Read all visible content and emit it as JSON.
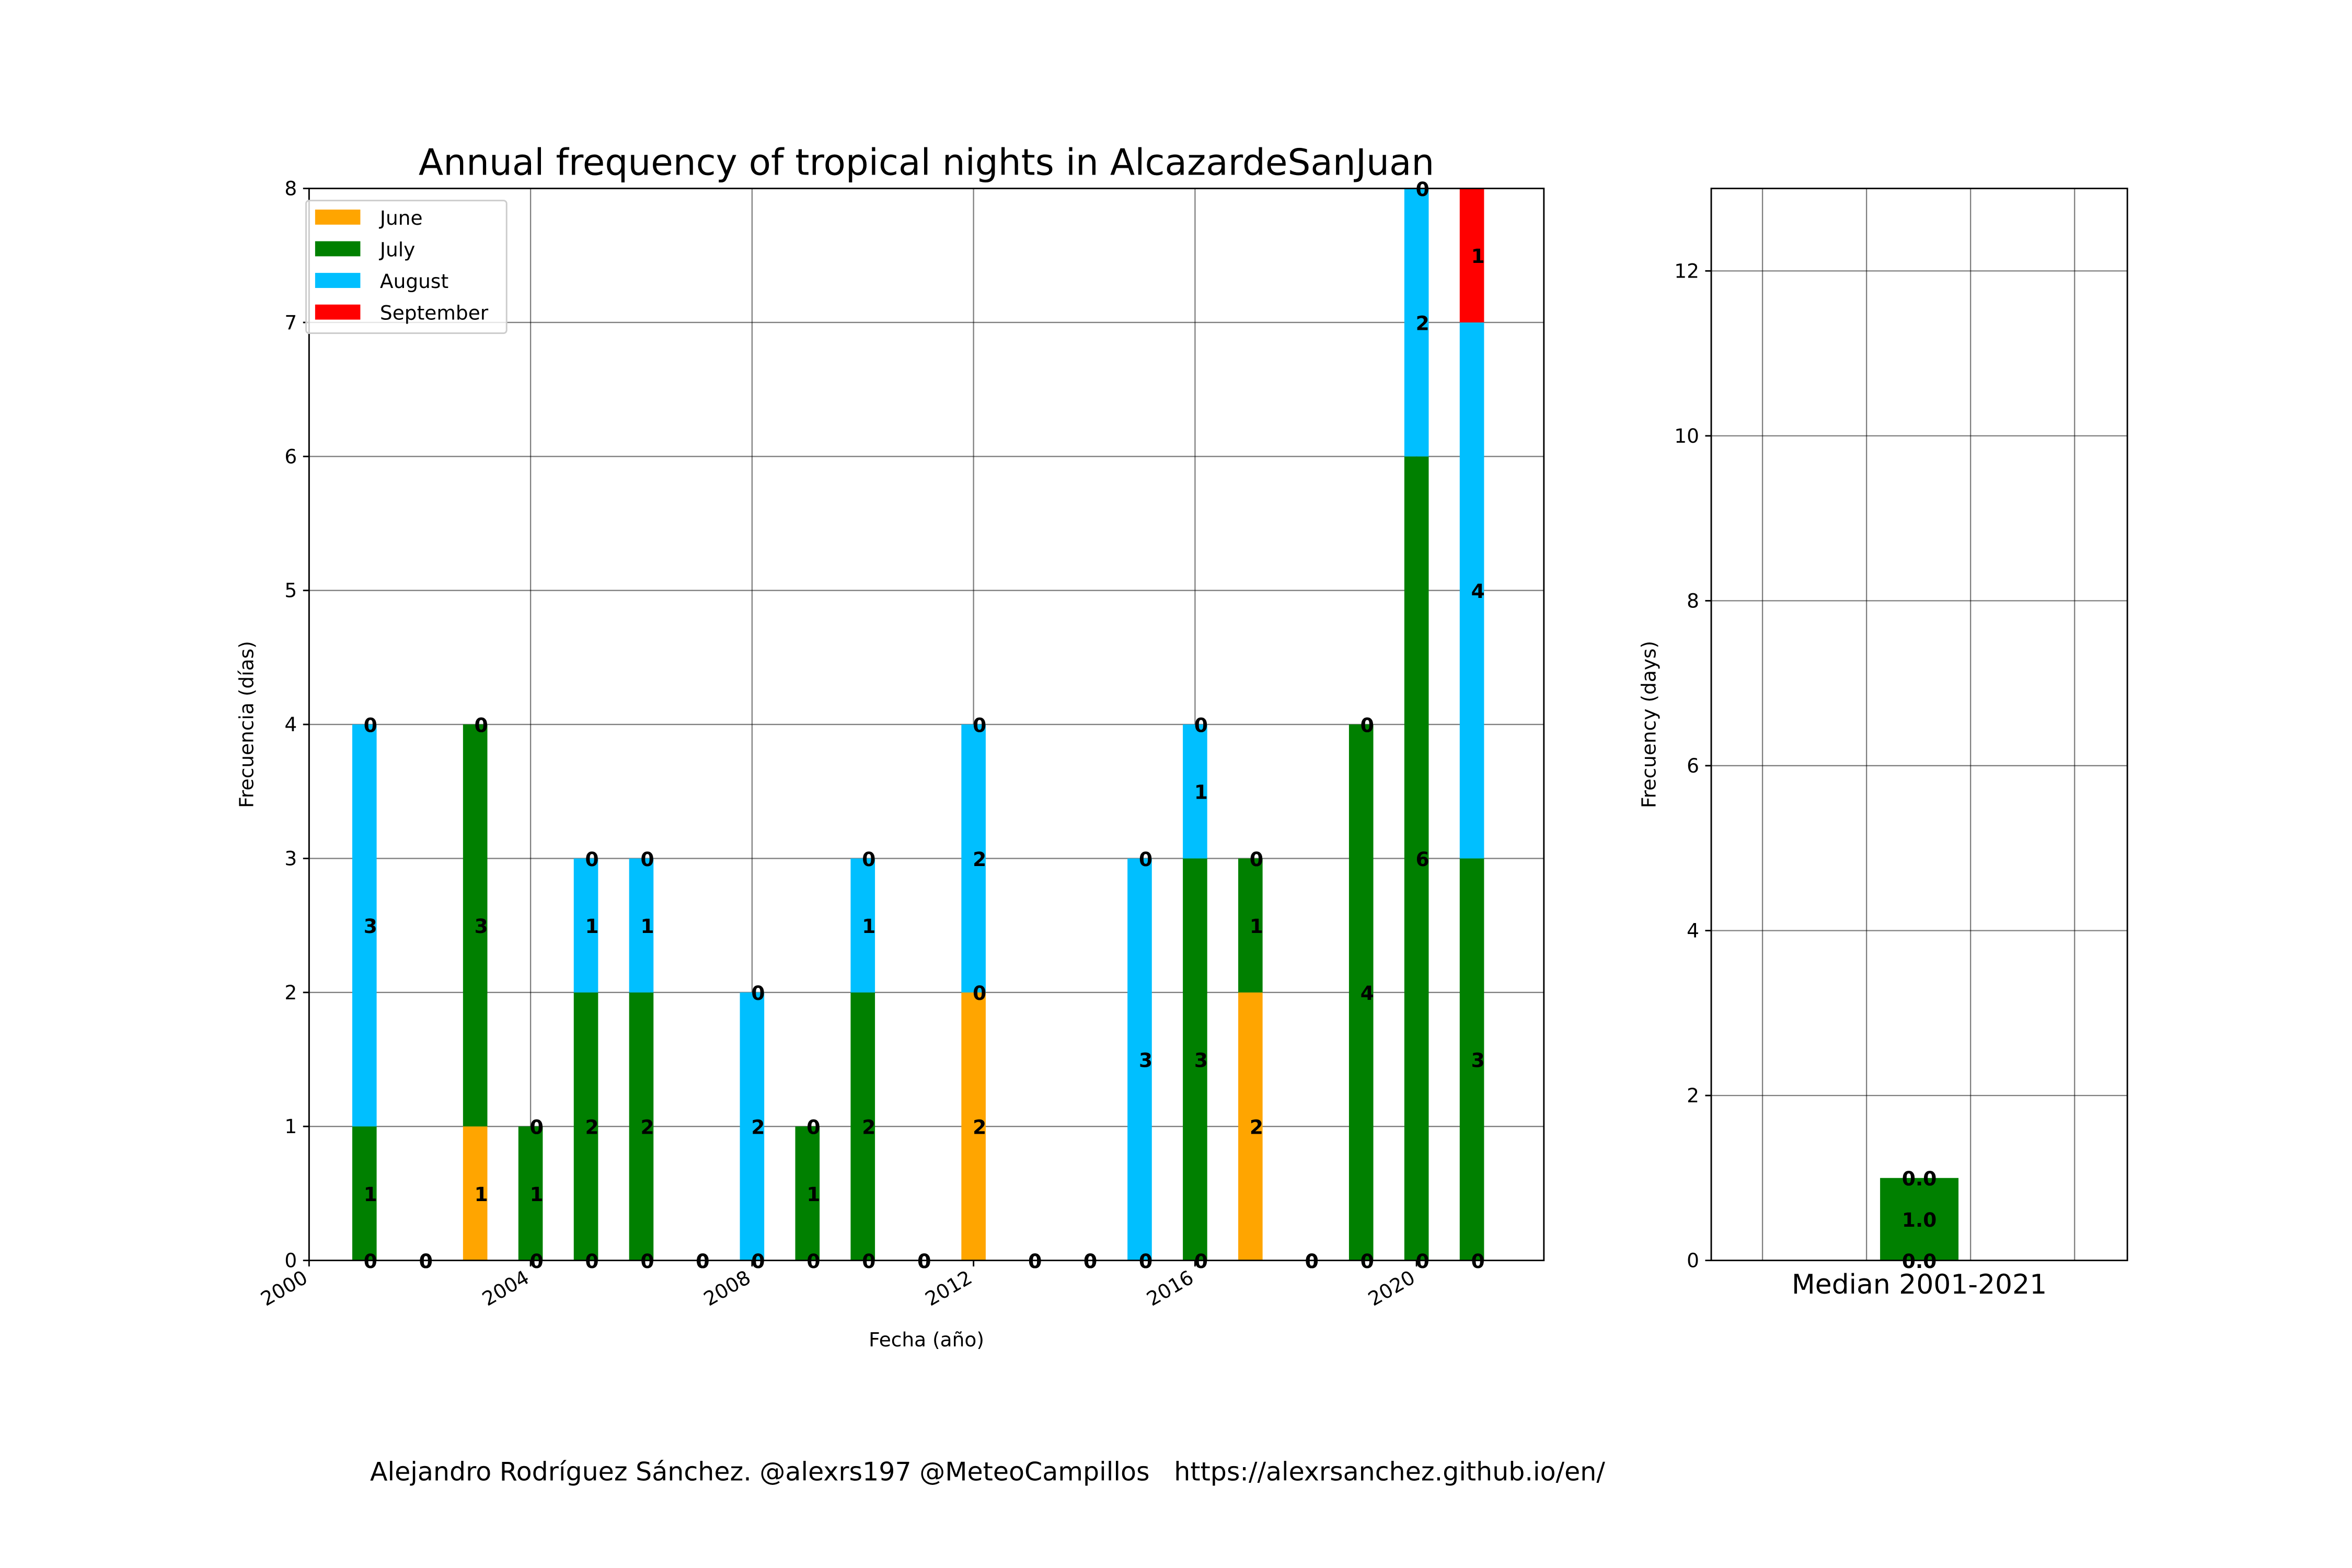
{
  "chart_data": [
    {
      "type": "bar",
      "stacked": true,
      "title": "Annual frequency of tropical nights in AlcazardeSanJuan",
      "x_label": "Fecha (año)",
      "y_label": "Frecuencia (días)",
      "x": [
        2001,
        2002,
        2003,
        2004,
        2005,
        2006,
        2007,
        2008,
        2009,
        2010,
        2011,
        2012,
        2013,
        2014,
        2015,
        2016,
        2017,
        2018,
        2019,
        2020,
        2021
      ],
      "series": [
        {
          "name": "June",
          "color": "#ffa500",
          "values": [
            0,
            0,
            1,
            0,
            0,
            0,
            0,
            0,
            0,
            0,
            0,
            2,
            0,
            0,
            0,
            0,
            2,
            0,
            0,
            0,
            0
          ]
        },
        {
          "name": "July",
          "color": "#008000",
          "values": [
            1,
            0,
            3,
            1,
            2,
            2,
            0,
            0,
            1,
            2,
            0,
            0,
            0,
            0,
            0,
            3,
            1,
            0,
            4,
            6,
            3
          ]
        },
        {
          "name": "August",
          "color": "#00bfff",
          "values": [
            3,
            0,
            0,
            0,
            1,
            1,
            0,
            2,
            0,
            1,
            0,
            2,
            0,
            0,
            3,
            1,
            0,
            0,
            0,
            2,
            4
          ]
        },
        {
          "name": "September",
          "color": "#ff0000",
          "values": [
            0,
            0,
            0,
            0,
            0,
            0,
            0,
            0,
            0,
            0,
            0,
            0,
            0,
            0,
            0,
            0,
            0,
            0,
            0,
            0,
            1
          ]
        }
      ],
      "xlim": [
        2000,
        2022.3
      ],
      "xticks": [
        2000,
        2004,
        2008,
        2012,
        2016,
        2020
      ],
      "ylim": [
        0,
        8
      ],
      "yticks": [
        0,
        1,
        2,
        3,
        4,
        5,
        6,
        7,
        8
      ],
      "grid": true,
      "legend": "upper left"
    },
    {
      "type": "bar",
      "stacked": true,
      "y_label": "Frecuency (days)",
      "categories": [
        "Median 2001-2021"
      ],
      "series": [
        {
          "name": "June",
          "color": "#ffa500",
          "values": [
            0
          ],
          "value_labels": [
            "0.0"
          ]
        },
        {
          "name": "July",
          "color": "#008000",
          "values": [
            1
          ],
          "value_labels": [
            "1.0"
          ]
        },
        {
          "name": "August",
          "color": "#00bfff",
          "values": [
            0
          ],
          "value_labels": [
            "0.0"
          ]
        },
        {
          "name": "September",
          "color": "#ff0000",
          "values": [
            0
          ],
          "value_labels": [
            "0.0"
          ]
        }
      ],
      "ylim": [
        0,
        13
      ],
      "yticks": [
        0,
        2,
        4,
        6,
        8,
        10,
        12
      ],
      "grid": true
    }
  ],
  "footer": "Alejandro Rodríguez Sánchez. @alexrs197 @MeteoCampillos   https://alexrsanchez.github.io/en/"
}
